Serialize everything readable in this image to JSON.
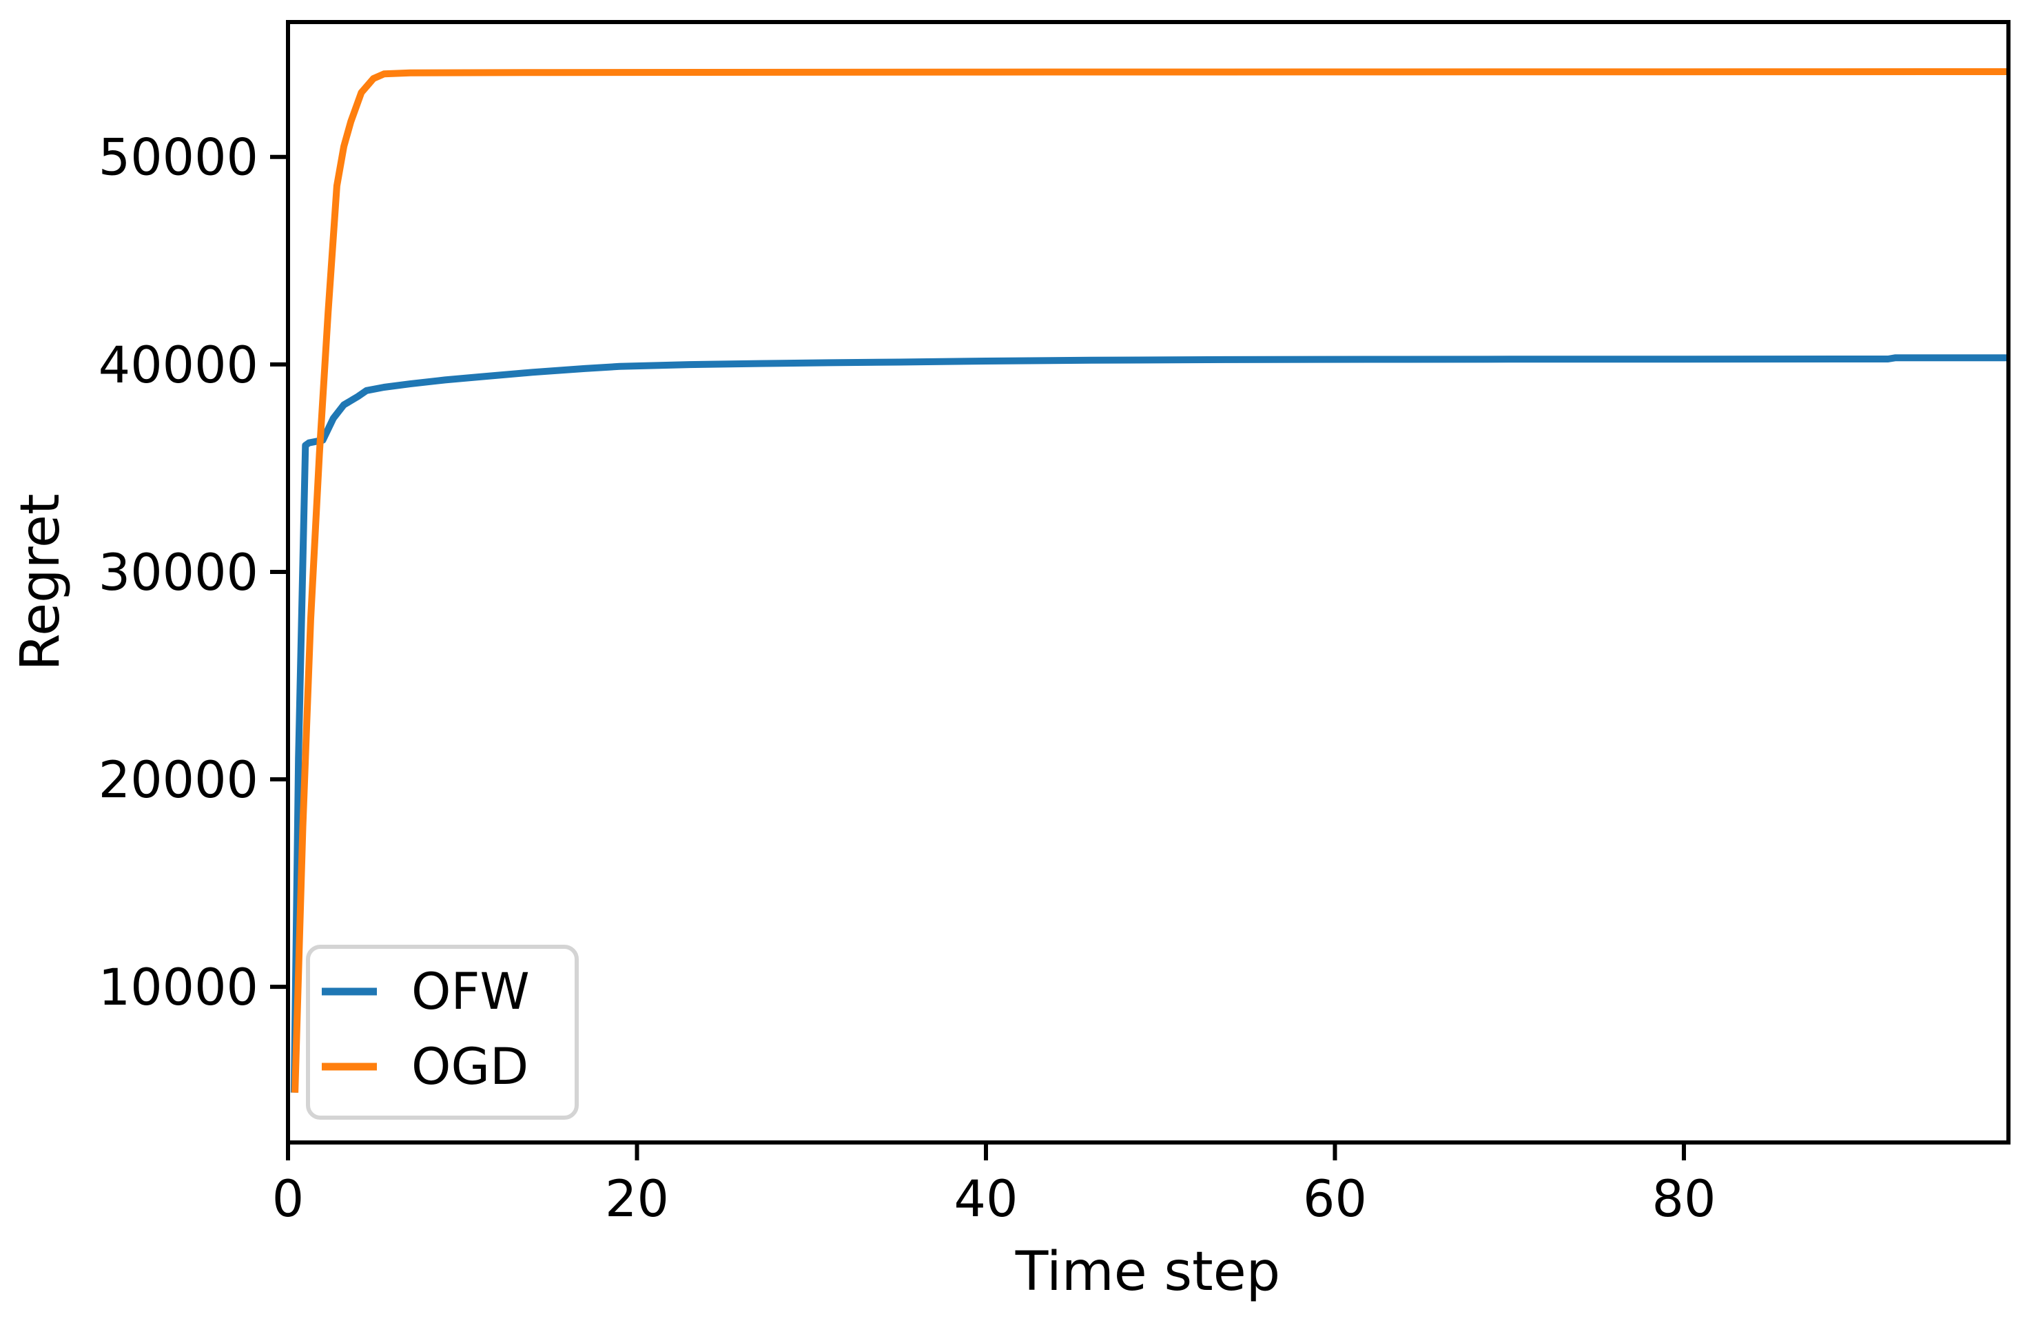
{
  "figure": {
    "background": "#ffffff",
    "frame_color": "#000000"
  },
  "chart_data": {
    "type": "line",
    "title": "",
    "xlabel": "Time step",
    "ylabel": "Regret",
    "xlim": [
      0,
      98.6
    ],
    "ylim": [
      2500,
      56500
    ],
    "xticks": [
      0,
      20,
      40,
      60,
      80
    ],
    "yticks": [
      10000,
      20000,
      30000,
      40000,
      50000
    ],
    "grid": false,
    "legend": {
      "position": "lower left",
      "entries": [
        "OFW",
        "OGD"
      ]
    },
    "series": [
      {
        "name": "OFW",
        "color": "#1f77b4",
        "points": [
          [
            0.35,
            4900
          ],
          [
            0.6,
            21000
          ],
          [
            1.0,
            36100
          ],
          [
            1.2,
            36220
          ],
          [
            2.0,
            36350
          ],
          [
            2.6,
            37400
          ],
          [
            3.2,
            38050
          ],
          [
            4.0,
            38450
          ],
          [
            4.5,
            38740
          ],
          [
            5.5,
            38900
          ],
          [
            7,
            39060
          ],
          [
            9,
            39250
          ],
          [
            11,
            39400
          ],
          [
            14,
            39620
          ],
          [
            17,
            39800
          ],
          [
            19,
            39900
          ],
          [
            23,
            39990
          ],
          [
            27,
            40040
          ],
          [
            31,
            40080
          ],
          [
            35,
            40110
          ],
          [
            40,
            40160
          ],
          [
            46,
            40200
          ],
          [
            54,
            40230
          ],
          [
            62,
            40245
          ],
          [
            70,
            40250
          ],
          [
            80,
            40255
          ],
          [
            91.7,
            40260
          ],
          [
            92.1,
            40315
          ],
          [
            98.6,
            40320
          ]
        ]
      },
      {
        "name": "OGD",
        "color": "#ff7f0e",
        "points": [
          [
            0.4,
            4900
          ],
          [
            0.85,
            17700
          ],
          [
            1.3,
            27700
          ],
          [
            1.8,
            35700
          ],
          [
            2.3,
            42500
          ],
          [
            2.8,
            48600
          ],
          [
            3.2,
            50500
          ],
          [
            3.6,
            51700
          ],
          [
            4.2,
            53100
          ],
          [
            4.9,
            53780
          ],
          [
            5.5,
            54000
          ],
          [
            7,
            54050
          ],
          [
            15,
            54070
          ],
          [
            40,
            54090
          ],
          [
            98.6,
            54110
          ]
        ]
      }
    ]
  }
}
